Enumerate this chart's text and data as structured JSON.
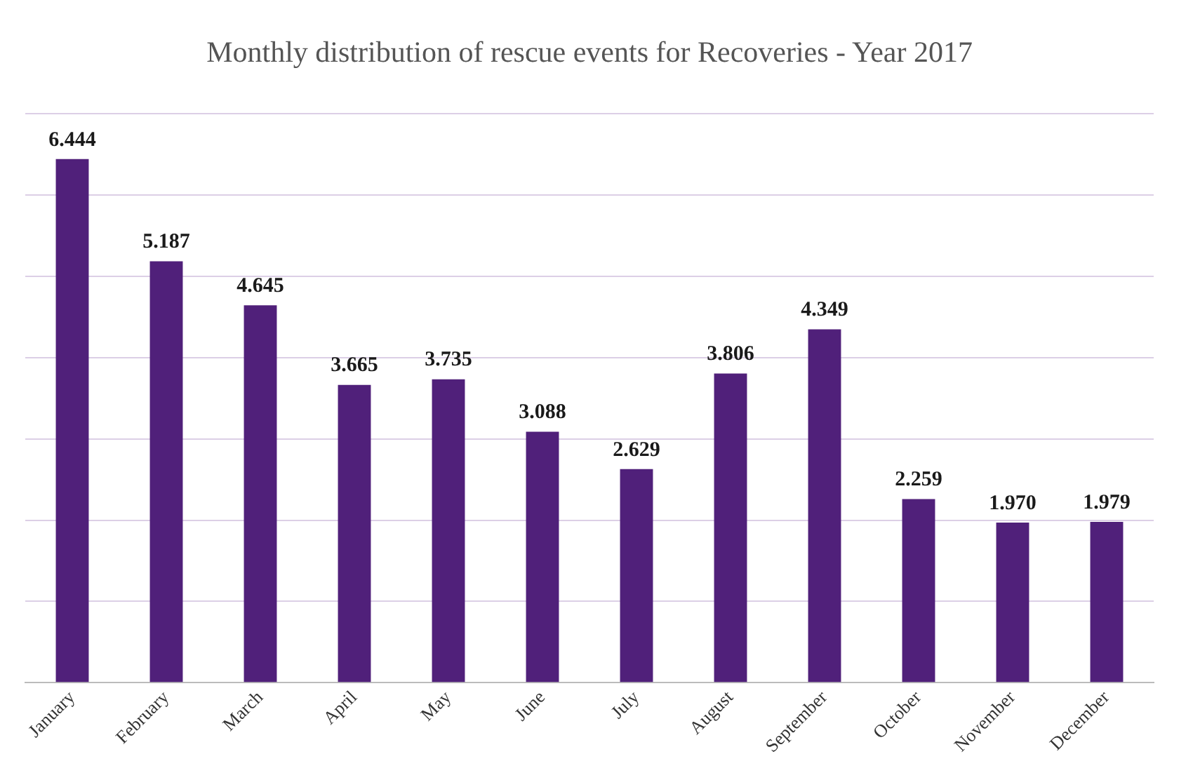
{
  "chart_data": {
    "type": "bar",
    "title": "Monthly distribution of rescue events for Recoveries - Year 2017",
    "categories": [
      "January",
      "February",
      "March",
      "April",
      "May",
      "June",
      "July",
      "August",
      "September",
      "October",
      "November",
      "December"
    ],
    "values": [
      6.444,
      5.187,
      4.645,
      3.665,
      3.735,
      3.088,
      2.629,
      3.806,
      4.349,
      2.259,
      1.97,
      1.979
    ],
    "color": "#50207a",
    "ylim": [
      0,
      7
    ],
    "yticks": [
      {
        "value": 0,
        "label": null
      },
      {
        "value": 1,
        "label": null
      },
      {
        "value": 2,
        "label": null
      },
      {
        "value": 3,
        "label": null
      },
      {
        "value": 4,
        "label": null
      },
      {
        "value": 5,
        "label": null
      },
      {
        "value": 6,
        "label": null
      },
      {
        "value": 7,
        "label": null
      }
    ],
    "tick_labels": "x",
    "grid": "y",
    "value_labels": [
      "6.444",
      "5.187",
      "4.645",
      "3.665",
      "3.735",
      "3.088",
      "2.629",
      "3.806",
      "4.349",
      "2.259",
      "1.970",
      "1.979"
    ]
  }
}
